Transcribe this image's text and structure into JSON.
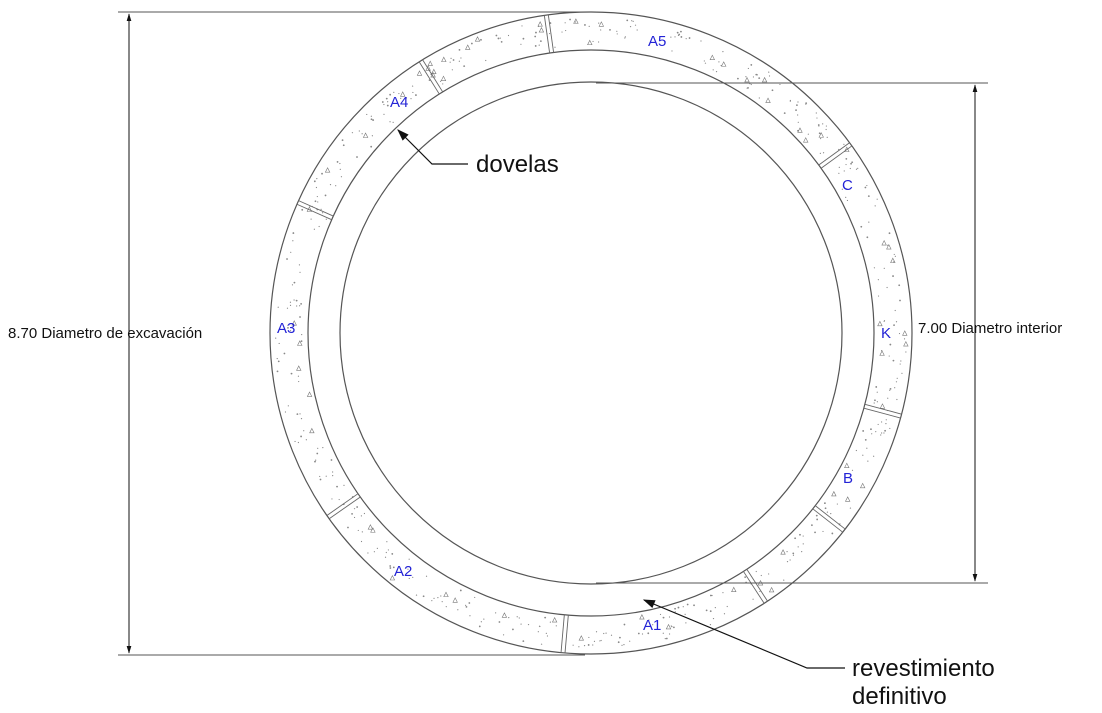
{
  "segments": {
    "a5": "A5",
    "a4": "A4",
    "a3": "A3",
    "a2": "A2",
    "a1": "A1",
    "b": "B",
    "k": "K",
    "c": "C"
  },
  "dimensions": {
    "excavation": "8.70 Diametro de excavación",
    "interior": "7.00 Diametro interior"
  },
  "callouts": {
    "dovelas": "dovelas",
    "revestimiento_line1": "revestimiento",
    "revestimiento_line2": "definitivo"
  },
  "colors": {
    "segment_label": "#2323d6",
    "line": "#555555"
  }
}
